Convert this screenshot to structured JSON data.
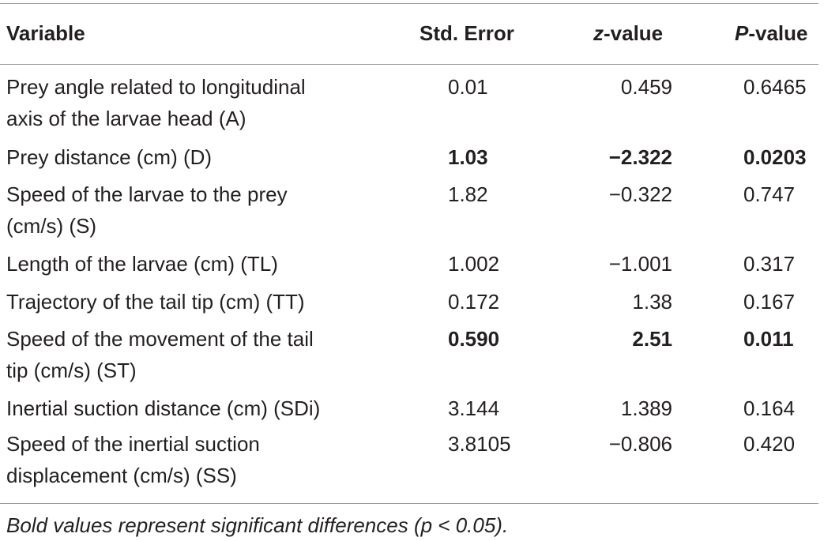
{
  "header": {
    "variable": "Variable",
    "std_error": "Std. Error",
    "z_italic": "z",
    "z_rest": "-value",
    "p_italic": "P",
    "p_rest": "-value"
  },
  "rows": [
    {
      "var_line1": "Prey angle related to longitudinal",
      "var_line2": "axis of the larvae head (A)",
      "se": "0.01",
      "z": "0.459",
      "p": "0.6465",
      "bold": false
    },
    {
      "var_line1": "Prey distance (cm) (D)",
      "var_line2": "",
      "se": "1.03",
      "z": "−2.322",
      "p": "0.0203",
      "bold": true
    },
    {
      "var_line1": "Speed of the larvae to the prey",
      "var_line2": "(cm/s) (S)",
      "se": "1.82",
      "z": "−0.322",
      "p": "0.747",
      "bold": false
    },
    {
      "var_line1": "Length of the larvae (cm) (TL)",
      "var_line2": "",
      "se": "1.002",
      "z": "−1.001",
      "p": "0.317",
      "bold": false
    },
    {
      "var_line1": "Trajectory of the tail tip (cm) (TT)",
      "var_line2": "",
      "se": "0.172",
      "z": "1.38",
      "p": "0.167",
      "bold": false
    },
    {
      "var_line1": "Speed of the movement of the tail",
      "var_line2": "tip (cm/s) (ST)",
      "se": "0.590",
      "z": "2.51",
      "p": "0.011",
      "bold": true
    },
    {
      "var_line1": "Inertial suction distance (cm) (SDi)",
      "var_line2": "",
      "se": "3.144",
      "z": "1.389",
      "p": "0.164",
      "bold": false
    },
    {
      "var_line1": "Speed of the inertial suction",
      "var_line2": "displacement (cm/s) (SS)",
      "se": "3.8105",
      "z": "−0.806",
      "p": "0.420",
      "bold": false
    }
  ],
  "footnote": "Bold values represent significant differences (p < 0.05)."
}
